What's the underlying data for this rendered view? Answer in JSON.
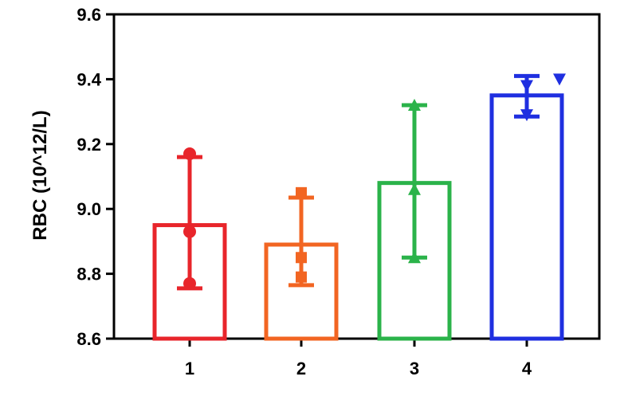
{
  "chart_data": {
    "type": "bar",
    "categories": [
      "1",
      "2",
      "3",
      "4"
    ],
    "ylabel": "RBC (10^12/L)",
    "xlabel": "",
    "ylim": [
      8.6,
      9.6
    ],
    "yticks": [
      "8.6",
      "8.8",
      "9.0",
      "9.2",
      "9.4",
      "9.6"
    ],
    "grid": false,
    "legend": "none",
    "series": [
      {
        "values": [
          8.95,
          8.89,
          9.08,
          9.35
        ],
        "error_low": [
          8.755,
          8.765,
          8.85,
          9.285
        ],
        "error_high": [
          9.16,
          9.035,
          9.32,
          9.41
        ],
        "colors": [
          "#e8252b",
          "#f26522",
          "#2bb34a",
          "#1f2fe0"
        ],
        "markers": [
          "circle",
          "square",
          "triangle-up",
          "triangle-down"
        ],
        "points": [
          [
            9.17,
            8.93,
            8.77
          ],
          [
            9.05,
            8.85,
            8.79
          ],
          [
            9.32,
            9.06,
            8.85
          ],
          [
            9.4,
            9.38,
            9.29
          ]
        ]
      }
    ]
  }
}
